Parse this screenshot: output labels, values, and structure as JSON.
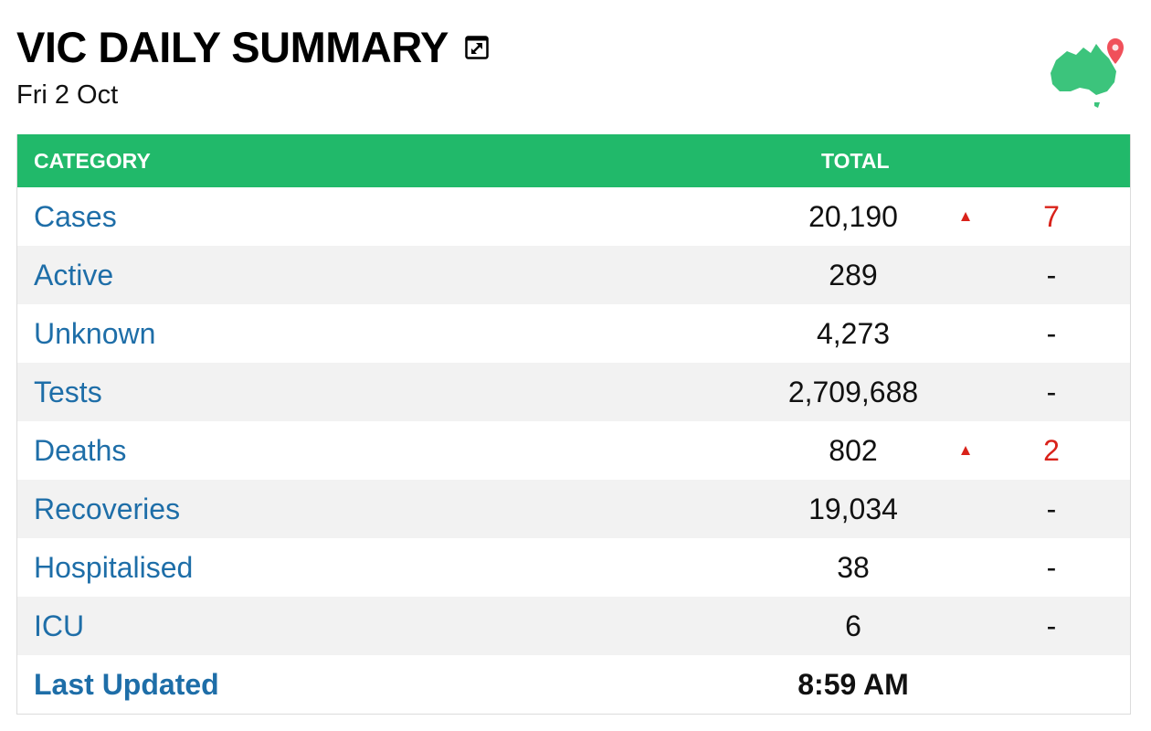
{
  "header": {
    "title": "VIC DAILY SUMMARY",
    "date": "Fri 2 Oct",
    "expand_icon": "expand-icon",
    "logo_icon": "australia-map-pin-icon"
  },
  "table": {
    "columns": {
      "category": "CATEGORY",
      "total": "TOTAL"
    },
    "rows": [
      {
        "label": "Cases",
        "total": "20,190",
        "arrow": "▲",
        "change": "7"
      },
      {
        "label": "Active",
        "total": "289",
        "arrow": "",
        "change": "-"
      },
      {
        "label": "Unknown",
        "total": "4,273",
        "arrow": "",
        "change": "-"
      },
      {
        "label": "Tests",
        "total": "2,709,688",
        "arrow": "",
        "change": "-"
      },
      {
        "label": "Deaths",
        "total": "802",
        "arrow": "▲",
        "change": "2"
      },
      {
        "label": "Recoveries",
        "total": "19,034",
        "arrow": "",
        "change": "-"
      },
      {
        "label": "Hospitalised",
        "total": "38",
        "arrow": "",
        "change": "-"
      },
      {
        "label": "ICU",
        "total": "6",
        "arrow": "",
        "change": "-"
      }
    ],
    "last_updated": {
      "label": "Last Updated",
      "value": "8:59 AM"
    }
  },
  "colors": {
    "header_green": "#21b96a",
    "link_blue": "#1e6ea8",
    "increase_red": "#d9221a",
    "map_green": "#3cc47c",
    "pin_red": "#f0505a"
  }
}
